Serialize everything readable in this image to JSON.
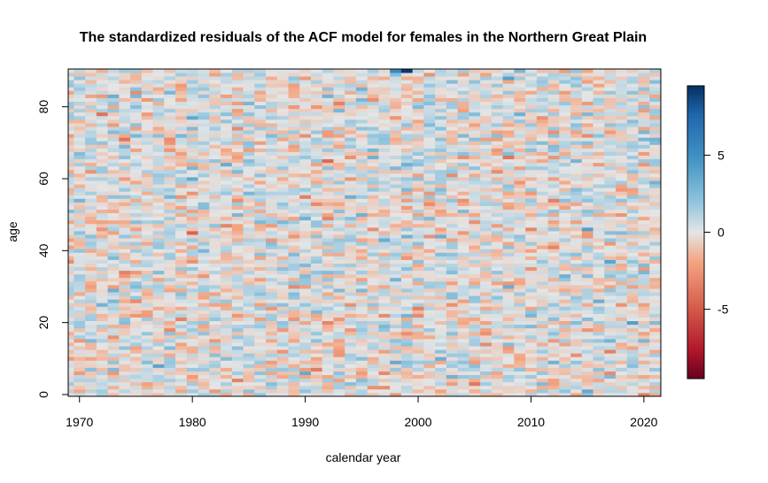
{
  "chart_data": {
    "type": "heatmap",
    "title": "The standardized residuals of the ACF model for females in the Northern Great Plain",
    "xlabel": "calendar year",
    "ylabel": "age",
    "x_range": [
      1969,
      2021
    ],
    "y_range": [
      0,
      90
    ],
    "xlim": [
      1969,
      2021.5
    ],
    "ylim": [
      -0.5,
      90.5
    ],
    "x_ticks": [
      1970,
      1980,
      1990,
      2000,
      2010,
      2020
    ],
    "y_ticks": [
      0,
      20,
      40,
      60,
      80
    ],
    "color_scale": {
      "min": -9.5,
      "max": 9.5,
      "ticks": [
        5,
        0,
        -5
      ],
      "low_color": "#67001f",
      "mid_color": "#e5e5e5",
      "high_color": "#053061"
    },
    "notable_cells": [
      {
        "x": 1999,
        "y": 90,
        "value": 9.2
      },
      {
        "x": 1998,
        "y": 90,
        "value": 5.5
      },
      {
        "x": 2008,
        "y": 88,
        "value": 4.0
      },
      {
        "x": 1980,
        "y": 60,
        "value": 3.5
      },
      {
        "x": 1983,
        "y": 64,
        "value": 3.4
      },
      {
        "x": 1972,
        "y": 25,
        "value": 3.0
      },
      {
        "x": 1990,
        "y": 6,
        "value": 3.5
      },
      {
        "x": 2015,
        "y": 1,
        "value": 3.5
      },
      {
        "x": 2020,
        "y": 0,
        "value": -3.5
      },
      {
        "x": 1999,
        "y": 64,
        "value": 3.0
      },
      {
        "x": 2021,
        "y": 59,
        "value": 3.0
      },
      {
        "x": 2021,
        "y": 71,
        "value": 3.0
      }
    ],
    "grid": false
  }
}
